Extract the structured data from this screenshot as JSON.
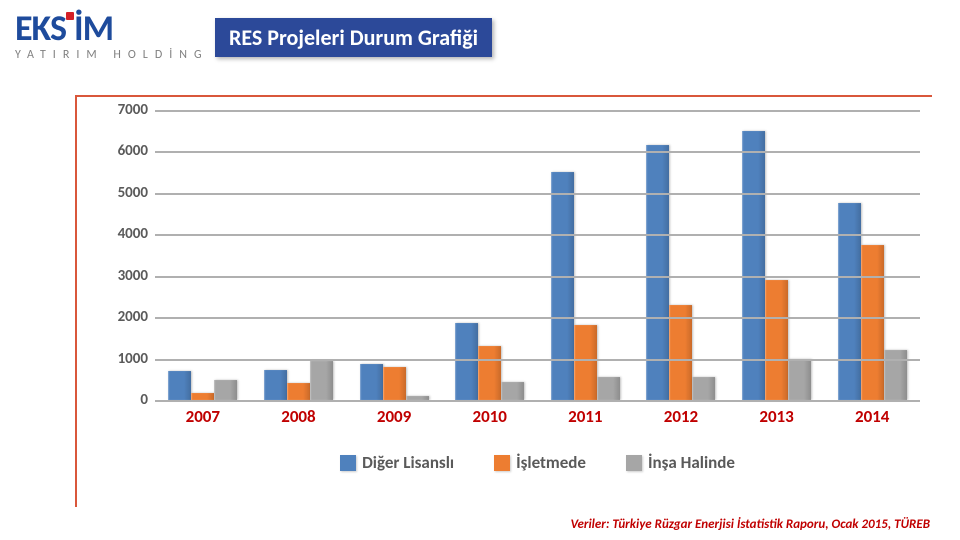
{
  "logo": {
    "main": "EKSİM",
    "sub": "YATIRIM HOLDİNG"
  },
  "title": "RES Projeleri Durum Grafiği",
  "chart": {
    "type": "bar",
    "ylim": [
      0,
      7000
    ],
    "ytick_step": 1000,
    "yticks": [
      0,
      1000,
      2000,
      3000,
      4000,
      5000,
      6000,
      7000
    ],
    "categories": [
      "2007",
      "2008",
      "2009",
      "2010",
      "2011",
      "2012",
      "2013",
      "2014"
    ],
    "series": [
      {
        "label": "Diğer Lisanslı",
        "color": "#4f81bd",
        "values": [
          690,
          720,
          870,
          1850,
          5500,
          6150,
          6500,
          4750
        ]
      },
      {
        "label": "İşletmede",
        "color": "#ed7d31",
        "values": [
          160,
          400,
          790,
          1300,
          1800,
          2300,
          2900,
          3750
        ]
      },
      {
        "label": "İnşa Halinde",
        "color": "#a6a6a6",
        "values": [
          480,
          930,
          100,
          440,
          550,
          560,
          1000,
          1200
        ]
      }
    ],
    "grid_color": "#b0b0b0",
    "background": "#ffffff",
    "ylabel_color": "#5a5a5a",
    "xlabel_color": "#c00000"
  },
  "source": "Veriler: Türkiye Rüzgar Enerjisi İstatistik Raporu, Ocak 2015, TÜREB"
}
